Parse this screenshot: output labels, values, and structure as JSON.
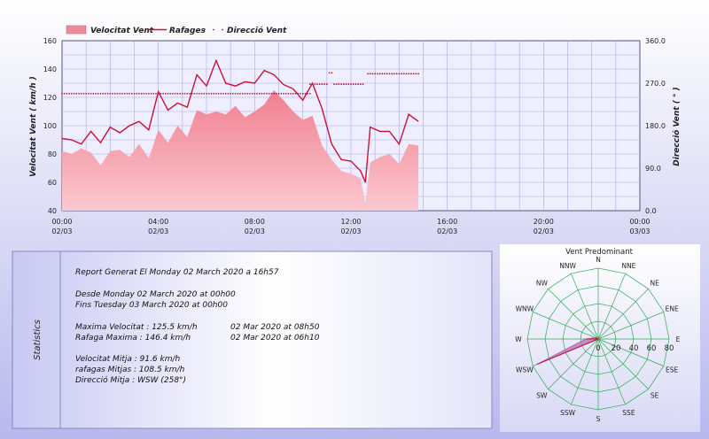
{
  "colors": {
    "bg_top": "#ffffff",
    "bg_bottom": "#b8b8ee",
    "plot_bg": "#eeeeff",
    "grid": "#aaaaee",
    "area_fill": "#f08c9a",
    "gust_line": "#cc1133",
    "direction": "#cc1133",
    "rose_grid": "#33aa55",
    "rose_fill": "#b070b0"
  },
  "chart_data": [
    {
      "type": "line",
      "legend": {
        "placement": "top-left",
        "items": [
          {
            "label": "Velocitat Vent",
            "style": "area"
          },
          {
            "label": "Rafages",
            "style": "line"
          },
          {
            "label": "Direcció Vent",
            "style": "dots"
          }
        ]
      },
      "ylabel": "Velocitat Vent  ( km/h )",
      "y2label": "Direcció Vent  ( ° )",
      "ylim": [
        40,
        160
      ],
      "y2lim": [
        0,
        360
      ],
      "xlim_hours": [
        0,
        24
      ],
      "grid": true,
      "y_ticks": [
        "40",
        "60",
        "80",
        "100",
        "120",
        "140",
        "160"
      ],
      "y2_ticks": [
        "0.0",
        "90.0",
        "180.0",
        "270.0",
        "360.0"
      ],
      "x_ticks": [
        {
          "time": "00:00",
          "date": "02/03"
        },
        {
          "time": "04:00",
          "date": "02/03"
        },
        {
          "time": "08:00",
          "date": "02/03"
        },
        {
          "time": "12:00",
          "date": "02/03"
        },
        {
          "time": "16:00",
          "date": "02/03"
        },
        {
          "time": "20:00",
          "date": "02/03"
        },
        {
          "time": "00:00",
          "date": "03/03"
        }
      ],
      "series": [
        {
          "name": "Velocitat Vent",
          "x_hours": [
            0,
            0.4,
            0.8,
            1.2,
            1.6,
            2.0,
            2.4,
            2.8,
            3.2,
            3.6,
            4.0,
            4.4,
            4.8,
            5.2,
            5.6,
            6.0,
            6.4,
            6.8,
            7.2,
            7.6,
            8.0,
            8.4,
            8.8,
            9.2,
            9.6,
            10.0,
            10.4,
            10.8,
            11.2,
            11.6,
            12.0,
            12.4,
            12.6,
            12.8,
            13.2,
            13.6,
            14.0,
            14.4,
            14.8
          ],
          "values": [
            82,
            80,
            84,
            81,
            72,
            82,
            83,
            78,
            87,
            77,
            97,
            88,
            100,
            92,
            111,
            108,
            110,
            108,
            114,
            106,
            110,
            115,
            125,
            118,
            110,
            104,
            107,
            86,
            76,
            68,
            66,
            63,
            45,
            74,
            78,
            80,
            73,
            87,
            86
          ]
        },
        {
          "name": "Rafages",
          "x_hours": [
            0,
            0.4,
            0.8,
            1.2,
            1.6,
            2.0,
            2.4,
            2.8,
            3.2,
            3.6,
            4.0,
            4.4,
            4.8,
            5.2,
            5.6,
            6.0,
            6.4,
            6.8,
            7.2,
            7.6,
            8.0,
            8.4,
            8.8,
            9.2,
            9.6,
            10.0,
            10.4,
            10.8,
            11.2,
            11.6,
            12.0,
            12.4,
            12.6,
            12.8,
            13.2,
            13.6,
            14.0,
            14.4,
            14.8
          ],
          "values": [
            91,
            90,
            87,
            96,
            88,
            99,
            95,
            100,
            103,
            97,
            124,
            111,
            116,
            113,
            136,
            128,
            146,
            130,
            128,
            131,
            130,
            139,
            136,
            129,
            126,
            118,
            130,
            112,
            87,
            76,
            75,
            68,
            60,
            99,
            96,
            96,
            87,
            108,
            103
          ]
        },
        {
          "name": "Direcció Vent",
          "axis": "y2",
          "segments": [
            {
              "x_from": 0,
              "x_to": 10.3,
              "value": 248
            },
            {
              "x_from": 10.3,
              "x_to": 11.0,
              "value": 268
            },
            {
              "x_from": 11.1,
              "x_to": 11.2,
              "value": 292
            },
            {
              "x_from": 11.3,
              "x_to": 12.5,
              "value": 268
            },
            {
              "x_from": 12.7,
              "x_to": 14.8,
              "value": 290
            }
          ]
        }
      ]
    },
    {
      "type": "polar",
      "title": "Vent Predominant",
      "directions": [
        "N",
        "NNE",
        "NE",
        "ENE",
        "E",
        "ESE",
        "SE",
        "SSE",
        "S",
        "SSW",
        "SW",
        "WSW",
        "W",
        "WNW",
        "NW",
        "NNW"
      ],
      "radial_ticks": [
        "0",
        "20",
        "40",
        "60",
        "80"
      ],
      "rmax": 80,
      "values": [
        0,
        0,
        0,
        0,
        0,
        0,
        0,
        0,
        0,
        0,
        0,
        75,
        14,
        4,
        0,
        0
      ]
    }
  ],
  "statistics": {
    "title": "Statistics",
    "report_line": "Report Generat El Monday 02 March 2020 a 16h57",
    "from_line": "Desde Monday 02 March 2020 at 00h00",
    "to_line": "Fins Tuesday 03 March 2020 at 00h00",
    "max_speed_label": "Maxima Velocitat : 125.5 km/h",
    "max_speed_time": "02 Mar 2020 at 08h50",
    "max_gust_label": "Rafaga Maxima : 146.4 km/h",
    "max_gust_time": "02 Mar 2020 at 06h10",
    "avg_speed": "Velocitat Mitja : 91.6 km/h",
    "avg_gust": "rafagas Mitjas : 108.5 km/h",
    "avg_dir": "Direcció Mitja : WSW (258°)"
  }
}
